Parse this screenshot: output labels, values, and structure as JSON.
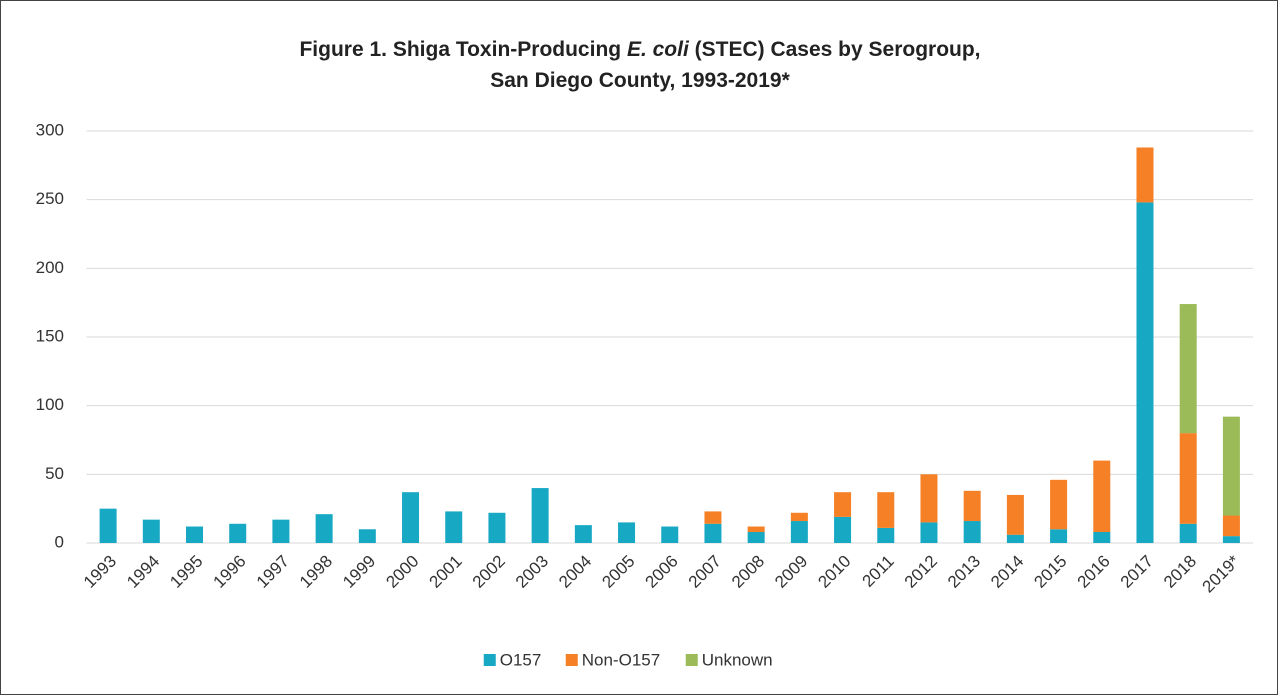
{
  "chart_data": {
    "type": "stacked_bar",
    "title": [
      [
        "Figure 1. Shiga Toxin-Producing ",
        "E. coli",
        "  (STEC) Cases by Serogroup,"
      ],
      [
        "San Diego County, 1993-2019*"
      ]
    ],
    "categories": [
      "1993",
      "1994",
      "1995",
      "1996",
      "1997",
      "1998",
      "1999",
      "2000",
      "2001",
      "2002",
      "2003",
      "2004",
      "2005",
      "2006",
      "2007",
      "2008",
      "2009",
      "2010",
      "2011",
      "2012",
      "2013",
      "2014",
      "2015",
      "2016",
      "2017",
      "2018",
      "2019*"
    ],
    "series": [
      {
        "name": "O157",
        "color": "#17a8c4",
        "values": [
          25,
          17,
          12,
          14,
          17,
          21,
          10,
          37,
          23,
          22,
          40,
          13,
          15,
          12,
          14,
          8,
          16,
          19,
          11,
          15,
          16,
          6,
          10,
          8,
          248,
          14,
          5
        ]
      },
      {
        "name": "Non-O157",
        "color": "#f58025",
        "values": [
          0,
          0,
          0,
          0,
          0,
          0,
          0,
          0,
          0,
          0,
          0,
          0,
          0,
          0,
          9,
          4,
          6,
          18,
          26,
          35,
          22,
          29,
          36,
          52,
          40,
          66,
          15
        ]
      },
      {
        "name": "Unknown",
        "color": "#9bbb59",
        "values": [
          0,
          0,
          0,
          0,
          0,
          0,
          0,
          0,
          0,
          0,
          0,
          0,
          0,
          0,
          0,
          0,
          0,
          0,
          0,
          0,
          0,
          0,
          0,
          0,
          0,
          94,
          72
        ]
      }
    ],
    "ylim": [
      0,
      300
    ],
    "yticks": [
      0,
      50,
      100,
      150,
      200,
      250,
      300
    ],
    "grid": true,
    "legend": "bottom"
  }
}
